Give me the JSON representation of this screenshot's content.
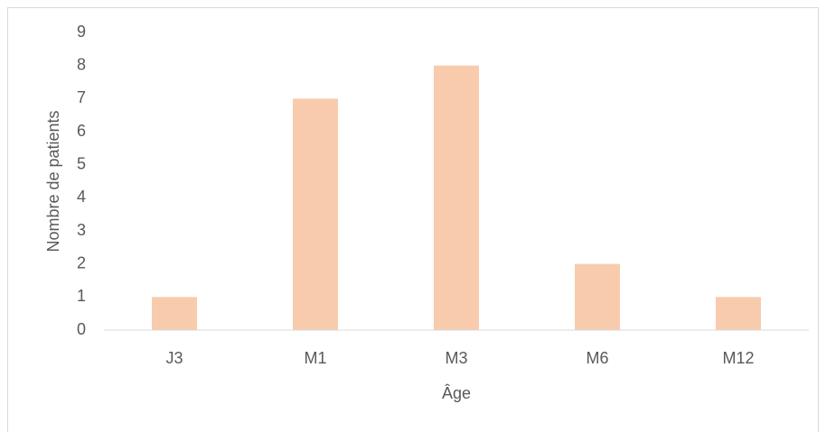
{
  "chart_data": {
    "type": "bar",
    "x_label": "Âge",
    "y_label": "Nombre de patients",
    "categories": [
      "J3",
      "M1",
      "M3",
      "M6",
      "M12"
    ],
    "values": [
      1,
      7,
      8,
      2,
      1
    ],
    "color": "#f8cbad",
    "ylim": [
      0,
      9
    ],
    "yticks": [
      0,
      1,
      2,
      3,
      4,
      5,
      6,
      7,
      8,
      9
    ],
    "grid": false
  }
}
